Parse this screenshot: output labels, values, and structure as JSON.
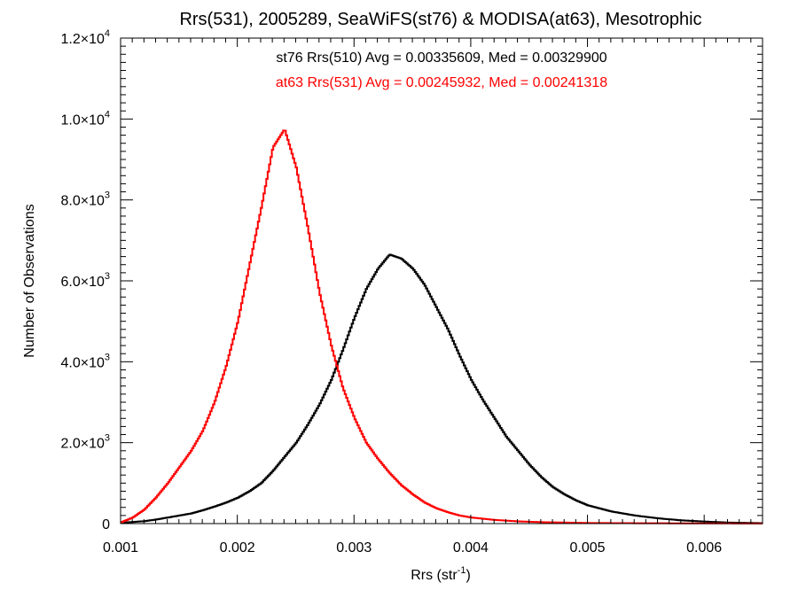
{
  "chart_data": {
    "type": "line",
    "title": "Rrs(531), 2005289, SeaWiFS(st76) & MODISA(at63), Mesotrophic",
    "xlabel": {
      "base": "Rrs (str",
      "sup": "-1",
      "tail": ")"
    },
    "ylabel": "Number of Observations",
    "xlim": [
      0.001,
      0.0065
    ],
    "ylim": [
      0,
      12000
    ],
    "x_ticks": [
      {
        "value": 0.001,
        "label": "0.001"
      },
      {
        "value": 0.002,
        "label": "0.002"
      },
      {
        "value": 0.003,
        "label": "0.003"
      },
      {
        "value": 0.004,
        "label": "0.004"
      },
      {
        "value": 0.005,
        "label": "0.005"
      },
      {
        "value": 0.006,
        "label": "0.006"
      }
    ],
    "y_ticks": [
      {
        "value": 0,
        "mant": "0",
        "exp": ""
      },
      {
        "value": 2000,
        "mant": "2.0×10",
        "exp": "3"
      },
      {
        "value": 4000,
        "mant": "4.0×10",
        "exp": "3"
      },
      {
        "value": 6000,
        "mant": "6.0×10",
        "exp": "3"
      },
      {
        "value": 8000,
        "mant": "8.0×10",
        "exp": "3"
      },
      {
        "value": 10000,
        "mant": "1.0×10",
        "exp": "4"
      },
      {
        "value": 12000,
        "mant": "1.2×10",
        "exp": "4"
      }
    ],
    "annotations": [
      {
        "text": "st76 Rrs(510) Avg = 0.00335609, Med = 0.00329900",
        "color": "#000000"
      },
      {
        "text": "at63 Rrs(531) Avg = 0.00245932, Med = 0.00241318",
        "color": "#ff0000"
      }
    ],
    "series": [
      {
        "color": "#000000",
        "x": [
          0.001,
          0.0011,
          0.0012,
          0.0013,
          0.0014,
          0.0015,
          0.0016,
          0.0017,
          0.0018,
          0.0019,
          0.002,
          0.0021,
          0.0022,
          0.0023,
          0.0024,
          0.0025,
          0.0026,
          0.0027,
          0.0028,
          0.0029,
          0.003,
          0.0031,
          0.0032,
          0.0033,
          0.0034,
          0.0035,
          0.0036,
          0.0037,
          0.0038,
          0.0039,
          0.004,
          0.0041,
          0.0042,
          0.0043,
          0.0044,
          0.0045,
          0.0046,
          0.0047,
          0.0048,
          0.0049,
          0.005,
          0.0052,
          0.0054,
          0.0056,
          0.0058,
          0.006,
          0.0062,
          0.0065
        ],
        "values": [
          20,
          40,
          60,
          100,
          150,
          200,
          250,
          330,
          420,
          520,
          640,
          800,
          1000,
          1300,
          1650,
          2000,
          2450,
          2950,
          3550,
          4300,
          5100,
          5800,
          6300,
          6650,
          6550,
          6300,
          5900,
          5350,
          4800,
          4150,
          3550,
          3050,
          2600,
          2150,
          1800,
          1450,
          1150,
          900,
          720,
          570,
          450,
          300,
          200,
          130,
          80,
          50,
          25,
          10
        ]
      },
      {
        "color": "#ff0000",
        "x": [
          0.001,
          0.0011,
          0.0012,
          0.0013,
          0.0014,
          0.0015,
          0.0016,
          0.0017,
          0.0018,
          0.0019,
          0.002,
          0.0021,
          0.0022,
          0.0023,
          0.0024,
          0.0025,
          0.0026,
          0.0027,
          0.0028,
          0.0029,
          0.003,
          0.0031,
          0.0032,
          0.0033,
          0.0034,
          0.0035,
          0.0036,
          0.0037,
          0.0038,
          0.0039,
          0.004,
          0.0042,
          0.0044,
          0.0046,
          0.0048,
          0.005,
          0.0055,
          0.006,
          0.0065
        ],
        "values": [
          30,
          150,
          350,
          650,
          1000,
          1400,
          1800,
          2300,
          3000,
          3900,
          5000,
          6400,
          7800,
          9300,
          9750,
          8800,
          7300,
          5700,
          4400,
          3350,
          2600,
          2000,
          1600,
          1250,
          950,
          720,
          520,
          380,
          280,
          200,
          150,
          90,
          55,
          35,
          25,
          15,
          8,
          5,
          3
        ]
      }
    ]
  }
}
